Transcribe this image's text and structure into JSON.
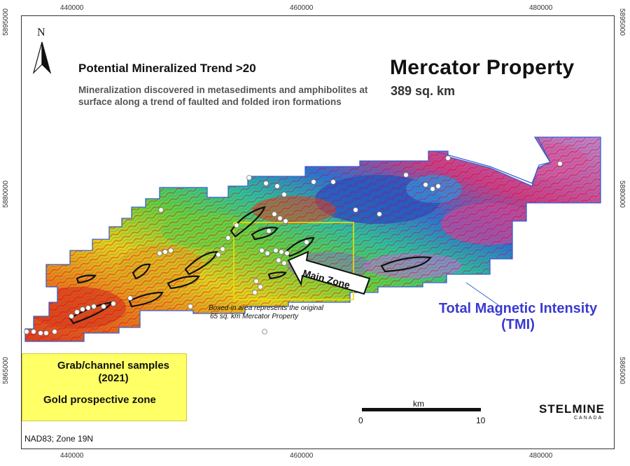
{
  "map": {
    "title": "Mercator Property",
    "area": "389 sq. km",
    "trend_title": "Potential Mineralized Trend >20",
    "trend_description": "Mineralization discovered in metasediments and amphibolites at surface along a trend of faulted and folded iron formations",
    "main_zone_label": "Main Zone",
    "boxed_note_line1": "Boxed-in area represents the original",
    "boxed_note_line2": "65 sq. km Mercator Property",
    "tmi_line1": "Total Magnetic Intensity",
    "tmi_line2": "(TMI)",
    "north_label": "N",
    "datum": "NAD83; Zone 19N"
  },
  "grid": {
    "easting_ticks": [
      "440000",
      "460000",
      "480000"
    ],
    "northing_ticks": [
      "5895000",
      "5880000",
      "5865000"
    ]
  },
  "legend": {
    "samples_line1": "Grab/channel samples",
    "samples_line2": "(2021)",
    "zone_label": "Gold prospective zone"
  },
  "scale": {
    "unit": "km",
    "start": "0",
    "end": "10"
  },
  "logo": {
    "name": "STELMINE",
    "sub": "CANADA"
  },
  "colors": {
    "tmi_text": "#3a3ad0",
    "legend_bg": "#ffff66",
    "boxed_area": "#f0e000",
    "outline": "#3a5fcd"
  }
}
